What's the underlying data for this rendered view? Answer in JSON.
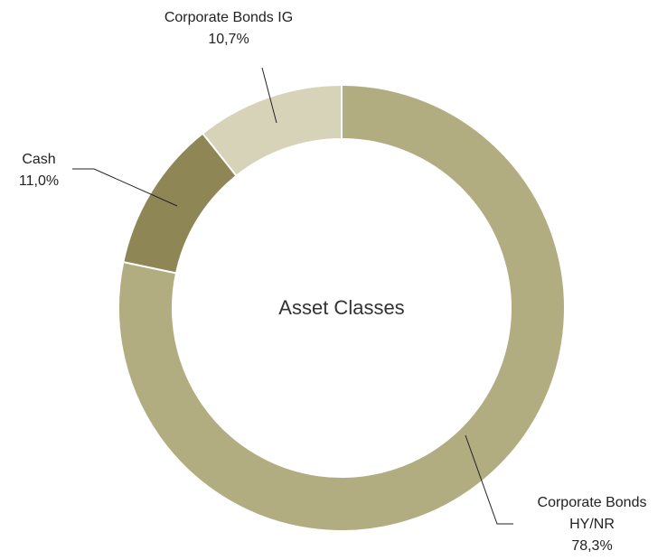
{
  "chart_data": {
    "type": "donut",
    "title": "Asset Classes",
    "categories": [
      "Corporate Bonds HY/NR",
      "Cash",
      "Corporate Bonds IG"
    ],
    "values": [
      78.3,
      11.0,
      10.7
    ],
    "value_labels": [
      "78,3%",
      "11,0%",
      "10,7%"
    ],
    "colors": [
      "#b1ad80",
      "#8e8655",
      "#d7d3b9"
    ]
  }
}
